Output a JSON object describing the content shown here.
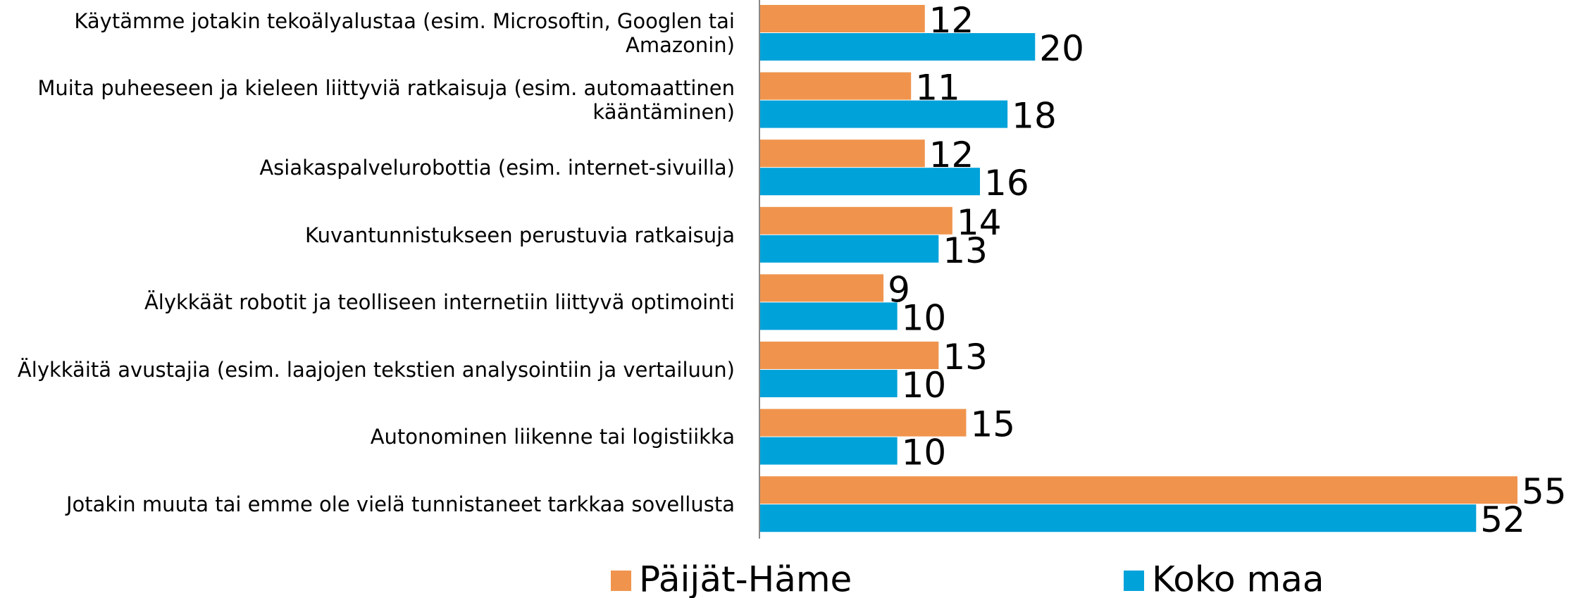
{
  "chart_data": {
    "type": "barh",
    "categories": [
      "Käytämme jotakin tekoälyalustaa (esim. Microsoftin, Googlen tai Amazonin)",
      "Muita puheeseen ja kieleen liittyviä ratkaisuja (esim. automaattinen kääntäminen)",
      "Asiakaspalvelurobottia (esim. internet-sivuilla)",
      "Kuvantunnistukseen perustuvia ratkaisuja",
      "Älykkäät robotit ja teolliseen internetiin liittyvä optimointi",
      "Älykkäitä avustajia (esim. laajojen tekstien analysointiin ja vertailuun)",
      "Autonominen liikenne tai logistiikka",
      "Jotakin muuta tai emme ole vielä tunnistaneet tarkkaa sovellusta"
    ],
    "series": [
      {
        "name": "Päijät-Häme",
        "color": "#f0944d",
        "values": [
          12,
          11,
          12,
          14,
          9,
          13,
          15,
          55
        ]
      },
      {
        "name": "Koko maa",
        "color": "#00a2da",
        "values": [
          20,
          18,
          16,
          13,
          10,
          10,
          10,
          52
        ]
      }
    ],
    "xlim": [
      0,
      55
    ],
    "grid": false
  }
}
